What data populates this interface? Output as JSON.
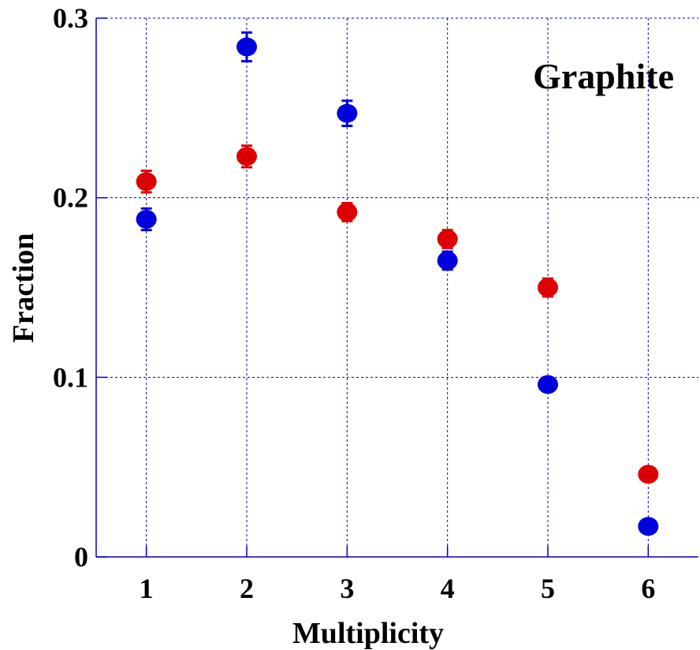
{
  "chart_data": {
    "type": "scatter",
    "title": "",
    "annotation": "Graphite",
    "xlabel": "Multiplicity",
    "ylabel": "Fraction",
    "xlim": [
      0.5,
      6.5
    ],
    "ylim": [
      0,
      0.3
    ],
    "x_ticks": [
      "1",
      "2",
      "3",
      "4",
      "5",
      "6"
    ],
    "y_ticks": [
      "0",
      "0.1",
      "0.2",
      "0.3"
    ],
    "grid": true,
    "series": [
      {
        "color": "#0000dd",
        "x": [
          1,
          2,
          3,
          4,
          5,
          6
        ],
        "y": [
          0.188,
          0.284,
          0.247,
          0.165,
          0.096,
          0.017
        ],
        "err": [
          0.006,
          0.008,
          0.007,
          0.005,
          0.0,
          0.0
        ]
      },
      {
        "color": "#dd0000",
        "x": [
          1,
          2,
          3,
          4,
          5,
          6
        ],
        "y": [
          0.209,
          0.223,
          0.192,
          0.177,
          0.15,
          0.046
        ],
        "err": [
          0.006,
          0.006,
          0.005,
          0.005,
          0.005,
          0.0
        ]
      }
    ]
  }
}
